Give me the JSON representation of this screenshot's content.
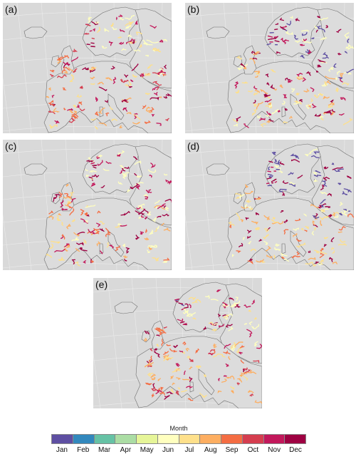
{
  "panels": [
    {
      "id": "a",
      "label": "(a)"
    },
    {
      "id": "b",
      "label": "(b)"
    },
    {
      "id": "c",
      "label": "(c)"
    },
    {
      "id": "d",
      "label": "(d)"
    },
    {
      "id": "e",
      "label": "(e)"
    }
  ],
  "legend": {
    "title": "Month",
    "months": [
      {
        "name": "Jan",
        "color": "#5e4fa2"
      },
      {
        "name": "Feb",
        "color": "#3288bd"
      },
      {
        "name": "Mar",
        "color": "#66c2a5"
      },
      {
        "name": "Apr",
        "color": "#abdda4"
      },
      {
        "name": "May",
        "color": "#e6f598"
      },
      {
        "name": "Jun",
        "color": "#ffffbf"
      },
      {
        "name": "Jul",
        "color": "#fee08b"
      },
      {
        "name": "Aug",
        "color": "#fdae61"
      },
      {
        "name": "Sep",
        "color": "#f46d43"
      },
      {
        "name": "Oct",
        "color": "#d53e4f"
      },
      {
        "name": "Nov",
        "color": "#c2185b"
      },
      {
        "name": "Dec",
        "color": "#9e0142"
      }
    ]
  },
  "map_style": {
    "ocean": "#d9d9d9",
    "land": "#dcdcdc",
    "coast": "#6e6e6e",
    "graticule": "#ececec"
  }
}
